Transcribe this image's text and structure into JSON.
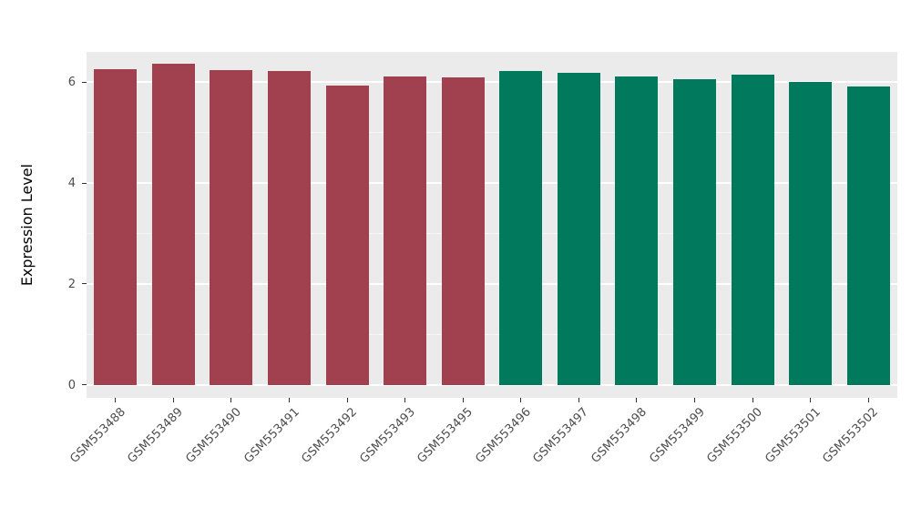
{
  "chart_data": {
    "type": "bar",
    "title": "",
    "xlabel": "",
    "ylabel": "Expression Level",
    "categories": [
      "GSM553488",
      "GSM553489",
      "GSM553490",
      "GSM553491",
      "GSM553492",
      "GSM553493",
      "GSM553495",
      "GSM553496",
      "GSM553497",
      "GSM553498",
      "GSM553499",
      "GSM553500",
      "GSM553501",
      "GSM553502"
    ],
    "values": [
      6.25,
      6.36,
      6.24,
      6.22,
      5.93,
      6.12,
      6.1,
      6.22,
      6.18,
      6.12,
      6.05,
      6.15,
      6.0,
      5.92
    ],
    "bar_colors": [
      "#A1414F",
      "#A1414F",
      "#A1414F",
      "#A1414F",
      "#A1414F",
      "#A1414F",
      "#A1414F",
      "#00795C",
      "#00795C",
      "#00795C",
      "#00795C",
      "#00795C",
      "#00795C",
      "#00795C"
    ],
    "yticks": [
      0,
      2,
      4,
      6
    ],
    "minor_yticks": [
      1,
      3,
      5
    ],
    "ylim": [
      -0.26,
      6.6
    ],
    "grid": true,
    "legend": "none",
    "panel_bg": "#EBEBEB",
    "grid_color": "#FFFFFF",
    "tick_label_color": "#4D4D4D"
  }
}
